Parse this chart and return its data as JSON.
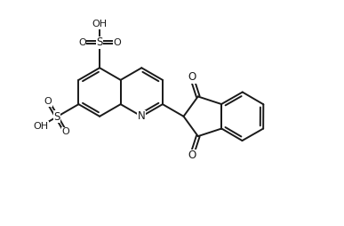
{
  "bg_color": "#ffffff",
  "line_color": "#1a1a1a",
  "line_width": 1.4,
  "figsize": [
    3.87,
    2.54
  ],
  "dpi": 100,
  "xlim": [
    0,
    10
  ],
  "ylim": [
    0,
    6.56
  ]
}
